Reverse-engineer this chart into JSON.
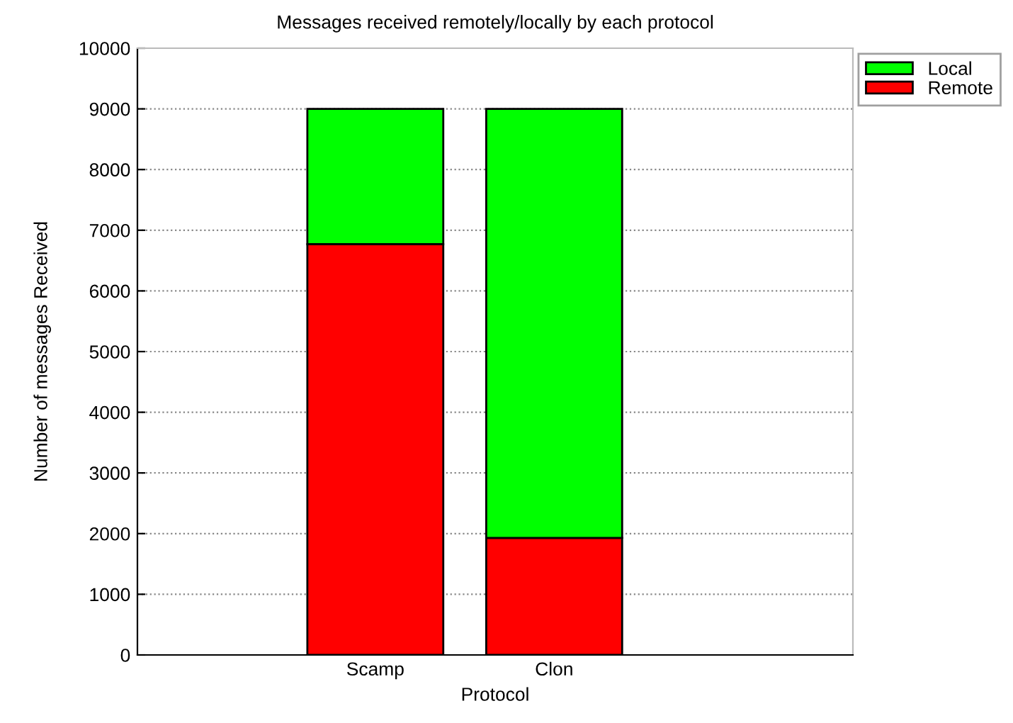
{
  "chart_data": {
    "type": "bar",
    "title": "Messages received remotely/locally by each protocol",
    "xlabel": "Protocol",
    "ylabel": "Number of messages Received",
    "categories": [
      "Scamp",
      "Clon"
    ],
    "stacked": true,
    "series": [
      {
        "name": "Remote",
        "color": "#ff0000",
        "values": [
          6770,
          1930
        ]
      },
      {
        "name": "Local",
        "color": "#00ff00",
        "values": [
          2230,
          7070
        ]
      }
    ],
    "ylim": [
      0,
      10000
    ],
    "yticks": [
      0,
      1000,
      2000,
      3000,
      4000,
      5000,
      6000,
      7000,
      8000,
      9000,
      10000
    ],
    "grid": "y",
    "legend": "top right"
  }
}
